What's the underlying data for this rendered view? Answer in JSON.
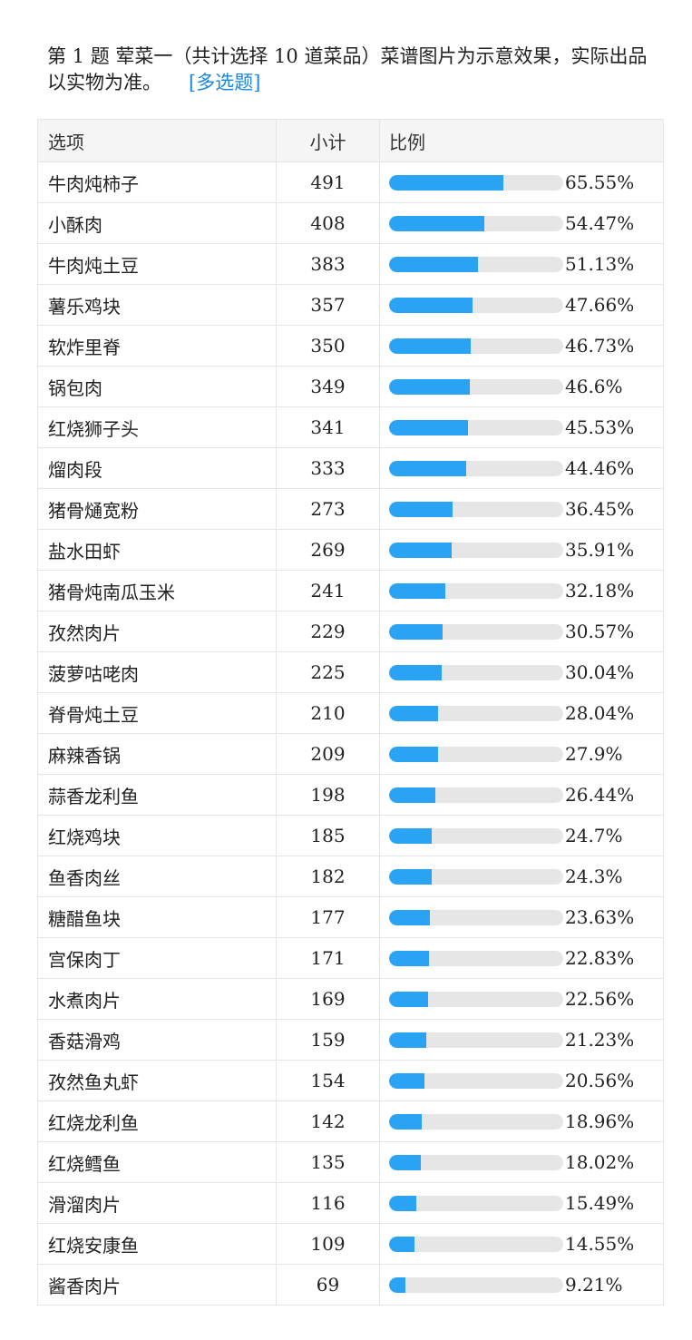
{
  "question": {
    "text": "第 1 题   荤菜一（共计选择 10 道菜品）菜谱图片为示意效果，实际出品以实物为准。",
    "tag": "[多选题]"
  },
  "table": {
    "headers": {
      "option": "选项",
      "count": "小计",
      "ratio": "比例"
    },
    "rows": [
      {
        "option": "牛肉炖柿子",
        "count": "491",
        "percent": "65.55%",
        "value": 65.55
      },
      {
        "option": "小酥肉",
        "count": "408",
        "percent": "54.47%",
        "value": 54.47
      },
      {
        "option": "牛肉炖土豆",
        "count": "383",
        "percent": "51.13%",
        "value": 51.13
      },
      {
        "option": "薯乐鸡块",
        "count": "357",
        "percent": "47.66%",
        "value": 47.66
      },
      {
        "option": "软炸里脊",
        "count": "350",
        "percent": "46.73%",
        "value": 46.73
      },
      {
        "option": "锅包肉",
        "count": "349",
        "percent": "46.6%",
        "value": 46.6
      },
      {
        "option": "红烧狮子头",
        "count": "341",
        "percent": "45.53%",
        "value": 45.53
      },
      {
        "option": "熘肉段",
        "count": "333",
        "percent": "44.46%",
        "value": 44.46
      },
      {
        "option": "猪骨熥宽粉",
        "count": "273",
        "percent": "36.45%",
        "value": 36.45
      },
      {
        "option": "盐水田虾",
        "count": "269",
        "percent": "35.91%",
        "value": 35.91
      },
      {
        "option": "猪骨炖南瓜玉米",
        "count": "241",
        "percent": "32.18%",
        "value": 32.18
      },
      {
        "option": "孜然肉片",
        "count": "229",
        "percent": "30.57%",
        "value": 30.57
      },
      {
        "option": "菠萝咕咾肉",
        "count": "225",
        "percent": "30.04%",
        "value": 30.04
      },
      {
        "option": "脊骨炖土豆",
        "count": "210",
        "percent": "28.04%",
        "value": 28.04
      },
      {
        "option": "麻辣香锅",
        "count": "209",
        "percent": "27.9%",
        "value": 27.9
      },
      {
        "option": "蒜香龙利鱼",
        "count": "198",
        "percent": "26.44%",
        "value": 26.44
      },
      {
        "option": "红烧鸡块",
        "count": "185",
        "percent": "24.7%",
        "value": 24.7
      },
      {
        "option": "鱼香肉丝",
        "count": "182",
        "percent": "24.3%",
        "value": 24.3
      },
      {
        "option": "糖醋鱼块",
        "count": "177",
        "percent": "23.63%",
        "value": 23.63
      },
      {
        "option": "宫保肉丁",
        "count": "171",
        "percent": "22.83%",
        "value": 22.83
      },
      {
        "option": "水煮肉片",
        "count": "169",
        "percent": "22.56%",
        "value": 22.56
      },
      {
        "option": "香菇滑鸡",
        "count": "159",
        "percent": "21.23%",
        "value": 21.23
      },
      {
        "option": "孜然鱼丸虾",
        "count": "154",
        "percent": "20.56%",
        "value": 20.56
      },
      {
        "option": "红烧龙利鱼",
        "count": "142",
        "percent": "18.96%",
        "value": 18.96
      },
      {
        "option": "红烧鳕鱼",
        "count": "135",
        "percent": "18.02%",
        "value": 18.02
      },
      {
        "option": "滑溜肉片",
        "count": "116",
        "percent": "15.49%",
        "value": 15.49
      },
      {
        "option": "红烧安康鱼",
        "count": "109",
        "percent": "14.55%",
        "value": 14.55
      },
      {
        "option": "酱香肉片",
        "count": "69",
        "percent": "9.21%",
        "value": 9.21
      }
    ]
  },
  "colors": {
    "bar_fill": "#2ba3f5",
    "bar_track": "#e6e6e6",
    "link": "#1a87e0"
  }
}
